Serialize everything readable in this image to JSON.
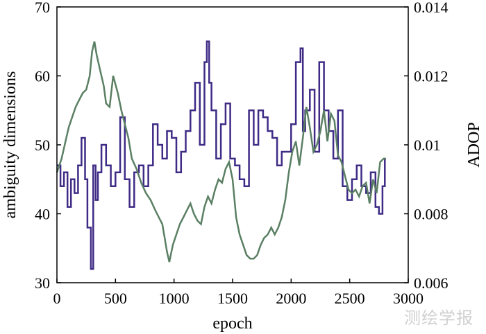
{
  "watermark": "测绘学报",
  "chart_data": {
    "type": "line",
    "xlabel": "epoch",
    "ylabel_left": "ambiguity dimensions",
    "ylabel_right": "ADOP",
    "xlim": [
      0,
      3000
    ],
    "ylim_left": [
      30,
      70
    ],
    "ylim_right": [
      0.006,
      0.014
    ],
    "x_ticks": [
      0,
      500,
      1000,
      1500,
      2000,
      2500,
      3000
    ],
    "x_tick_labels": [
      "0",
      "500",
      "1000",
      "1500",
      "2000",
      "2500",
      "3000"
    ],
    "y_left_ticks": [
      30,
      40,
      50,
      60,
      70
    ],
    "y_left_tick_labels": [
      "30",
      "40",
      "50",
      "60",
      "70"
    ],
    "y_right_ticks": [
      0.006,
      0.008,
      0.01,
      0.012,
      0.014
    ],
    "y_right_tick_labels": [
      "0.006",
      "0.008",
      "0.01",
      "0.012",
      "0.014"
    ],
    "grid": false,
    "series": [
      {
        "axis": "left",
        "step": true,
        "color": "#3f2b86",
        "x": [
          0,
          30,
          60,
          90,
          120,
          150,
          180,
          210,
          240,
          260,
          290,
          310,
          330,
          350,
          380,
          420,
          460,
          500,
          540,
          580,
          620,
          660,
          700,
          740,
          780,
          820,
          860,
          900,
          940,
          980,
          1020,
          1060,
          1100,
          1140,
          1180,
          1220,
          1260,
          1280,
          1300,
          1320,
          1360,
          1400,
          1440,
          1480,
          1520,
          1560,
          1600,
          1640,
          1680,
          1720,
          1760,
          1800,
          1840,
          1880,
          1920,
          1960,
          2000,
          2040,
          2080,
          2100,
          2120,
          2160,
          2200,
          2240,
          2280,
          2320,
          2360,
          2400,
          2440,
          2480,
          2520,
          2560,
          2600,
          2640,
          2680,
          2720,
          2750,
          2780,
          2800
        ],
        "values": [
          47,
          44,
          46,
          41,
          45,
          43,
          47,
          51,
          45,
          38,
          32,
          47,
          42,
          46,
          50,
          47,
          44,
          46,
          54,
          45,
          41,
          46,
          47,
          44,
          47,
          53,
          50,
          48,
          52,
          51,
          46,
          49,
          52,
          55,
          59,
          50,
          62,
          65,
          59,
          55,
          48,
          53,
          56,
          48,
          47,
          45,
          44,
          55,
          50,
          55,
          54,
          52,
          51,
          47,
          49,
          49,
          53,
          62,
          64,
          52,
          55,
          58,
          49,
          62,
          55,
          52,
          48,
          55,
          44,
          42,
          45,
          47,
          44,
          43,
          46,
          41,
          40,
          44,
          48
        ]
      },
      {
        "axis": "right",
        "step": false,
        "color": "#5a7f63",
        "x": [
          0,
          20,
          40,
          60,
          80,
          100,
          130,
          160,
          190,
          220,
          250,
          280,
          300,
          320,
          340,
          360,
          380,
          400,
          420,
          450,
          480,
          520,
          550,
          580,
          610,
          640,
          680,
          720,
          760,
          800,
          840,
          870,
          900,
          920,
          940,
          960,
          990,
          1020,
          1050,
          1080,
          1110,
          1140,
          1170,
          1200,
          1230,
          1260,
          1290,
          1320,
          1350,
          1380,
          1410,
          1440,
          1470,
          1500,
          1530,
          1560,
          1590,
          1620,
          1650,
          1680,
          1710,
          1740,
          1770,
          1800,
          1830,
          1860,
          1890,
          1920,
          1950,
          1980,
          2010,
          2040,
          2070,
          2100,
          2130,
          2160,
          2190,
          2220,
          2250,
          2280,
          2310,
          2340,
          2370,
          2400,
          2430,
          2460,
          2490,
          2520,
          2550,
          2580,
          2610,
          2640,
          2670,
          2700,
          2730,
          2760,
          2790,
          2810
        ],
        "values": [
          0.0092,
          0.0094,
          0.0096,
          0.0099,
          0.0102,
          0.0105,
          0.0108,
          0.0111,
          0.0113,
          0.0115,
          0.0116,
          0.012,
          0.0127,
          0.013,
          0.0126,
          0.0123,
          0.012,
          0.0117,
          0.0112,
          0.0111,
          0.012,
          0.0115,
          0.011,
          0.0106,
          0.0102,
          0.0096,
          0.0093,
          0.0089,
          0.0086,
          0.0084,
          0.0081,
          0.0079,
          0.0077,
          0.0073,
          0.0069,
          0.0066,
          0.0071,
          0.0074,
          0.0077,
          0.0079,
          0.0081,
          0.0083,
          0.008,
          0.0078,
          0.0077,
          0.0082,
          0.0085,
          0.0083,
          0.0087,
          0.009,
          0.0089,
          0.0093,
          0.0095,
          0.009,
          0.0079,
          0.0074,
          0.0071,
          0.0068,
          0.0067,
          0.0067,
          0.0068,
          0.0071,
          0.0073,
          0.0074,
          0.0076,
          0.0074,
          0.0076,
          0.0079,
          0.0084,
          0.0092,
          0.0098,
          0.0101,
          0.0094,
          0.0102,
          0.0111,
          0.0105,
          0.0098,
          0.01,
          0.0104,
          0.011,
          0.0101,
          0.0109,
          0.0107,
          0.0097,
          0.0095,
          0.0091,
          0.0087,
          0.0086,
          0.0087,
          0.0085,
          0.0088,
          0.0089,
          0.0083,
          0.009,
          0.0086,
          0.0095,
          0.0096,
          0.0096
        ]
      }
    ]
  }
}
